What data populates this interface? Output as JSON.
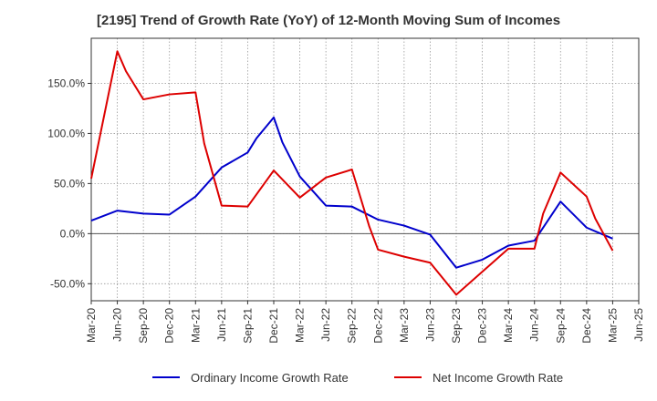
{
  "chart_data": {
    "type": "line",
    "title": "[2195]  Trend of Growth Rate (YoY) of 12-Month Moving Sum of Incomes",
    "xlabel": "",
    "ylabel": "",
    "x_tick_labels": [
      "Mar-20",
      "Jun-20",
      "Sep-20",
      "Dec-20",
      "Mar-21",
      "Jun-21",
      "Sep-21",
      "Dec-21",
      "Mar-22",
      "Jun-22",
      "Sep-22",
      "Dec-22",
      "Mar-23",
      "Jun-23",
      "Sep-23",
      "Dec-23",
      "Mar-24",
      "Jun-24",
      "Sep-24",
      "Dec-24",
      "Mar-25",
      "Jun-25"
    ],
    "y_ticks": [
      150,
      100,
      50,
      0,
      -50
    ],
    "y_tick_labels": [
      "150.0%",
      "100.0%",
      "50.0%",
      "0.0%",
      "-50.0%"
    ],
    "ylim": [
      -67,
      195
    ],
    "grid": true,
    "legend_position": "bottom",
    "series": [
      {
        "name": "Ordinary Income Growth Rate",
        "color": "#0000cc",
        "x": [
          "Mar-20",
          "Jun-20",
          "Sep-20",
          "Dec-20",
          "Mar-21",
          "Jun-21",
          "Sep-21",
          "Oct-21",
          "Dec-21",
          "Jan-22",
          "Mar-22",
          "Jun-22",
          "Sep-22",
          "Dec-22",
          "Mar-23",
          "Jun-23",
          "Sep-23",
          "Dec-23",
          "Mar-24",
          "Jun-24",
          "Sep-24",
          "Dec-24",
          "Mar-25"
        ],
        "values": [
          13,
          23,
          20,
          19,
          37,
          66,
          81,
          95,
          116,
          91,
          57,
          28,
          27,
          14,
          8,
          -1,
          -34,
          -26,
          -12,
          -7,
          32,
          6,
          -5
        ]
      },
      {
        "name": "Net Income Growth Rate",
        "color": "#dd0000",
        "x": [
          "Mar-20",
          "Jun-20",
          "Jul-20",
          "Sep-20",
          "Dec-20",
          "Mar-21",
          "Apr-21",
          "Jun-21",
          "Sep-21",
          "Dec-21",
          "Mar-22",
          "Jun-22",
          "Sep-22",
          "Nov-22",
          "Dec-22",
          "Mar-23",
          "Jun-23",
          "Sep-23",
          "Dec-23",
          "Mar-24",
          "Jun-24",
          "Jul-24",
          "Sep-24",
          "Dec-24",
          "Jan-25",
          "Mar-25"
        ],
        "values": [
          55,
          182,
          162,
          134,
          139,
          141,
          90,
          28,
          27,
          63,
          36,
          56,
          64,
          7,
          -16,
          -23,
          -29,
          -61,
          -38,
          -15,
          -15,
          20,
          61,
          37,
          15,
          -17
        ]
      }
    ]
  }
}
